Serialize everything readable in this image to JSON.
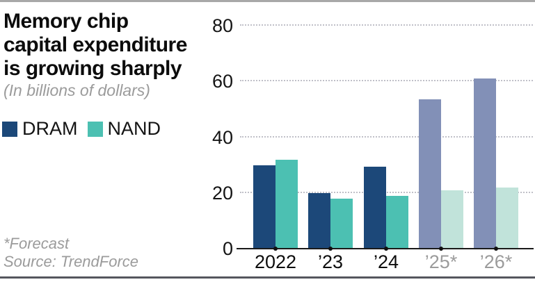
{
  "header": {
    "title_lines": [
      "Memory chip",
      "capital expenditure",
      "is growing sharply"
    ],
    "subtitle": "(In billions of dollars)"
  },
  "legend": [
    {
      "label": "DRAM",
      "color": "#1c4879"
    },
    {
      "label": "NAND",
      "color": "#4cc0b2"
    }
  ],
  "footer": {
    "forecast_note": "*Forecast",
    "source": "Source: TrendForce"
  },
  "chart_data": {
    "type": "bar",
    "title": "Memory chip capital expenditure is growing sharply",
    "subtitle": "(In billions of dollars)",
    "categories": [
      "2022",
      "’23",
      "’24",
      "’25*",
      "’26*"
    ],
    "forecast": [
      false,
      false,
      false,
      true,
      true
    ],
    "series": [
      {
        "name": "DRAM",
        "color": "#1c4879",
        "forecast_color": "#8290b7",
        "values": [
          30,
          20,
          29.5,
          53.5,
          61
        ]
      },
      {
        "name": "NAND",
        "color": "#4cc0b2",
        "forecast_color": "#c1e3da",
        "values": [
          32,
          18,
          19,
          21,
          22
        ]
      }
    ],
    "ylim": [
      0,
      80
    ],
    "yticks": [
      0,
      20,
      40,
      60,
      80
    ],
    "grid": "horizontal-dotted",
    "legend_position": "top-left",
    "forecast_note": "*Forecast",
    "source": "TrendForce"
  },
  "colors": {
    "background": "#ffffff",
    "text": "#0d0d0d",
    "muted_text": "#9b9b9b",
    "axis": "#1a1a1a",
    "gridline": "#c0c0c8",
    "top_rule": "#a8a8a8",
    "bottom_rule": "#55565e"
  }
}
